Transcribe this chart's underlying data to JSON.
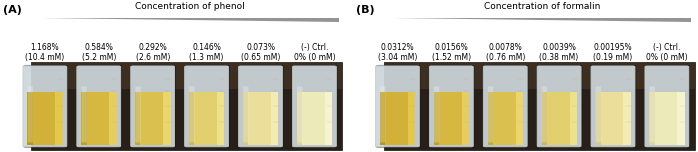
{
  "panel_A": {
    "label": "(A)",
    "concentration_label": "Concentration of phenol",
    "tube_labels": [
      "1.168%\n(10.4 mM)",
      "0.584%\n(5.2 mM)",
      "0.292%\n(2.6 mM)",
      "0.146%\n(1.3 mM)",
      "0.073%\n(0.65 mM)",
      "(-) Ctrl.\n0% (0 mM)"
    ],
    "liquid_colors_dark": [
      "#b8960a",
      "#bda020",
      "#c4aa30",
      "#ccb850",
      "#d8cc80",
      "#ddd8a0"
    ],
    "liquid_colors_mid": [
      "#d4b030",
      "#d8b83a",
      "#dcc048",
      "#e4d068",
      "#eee098",
      "#f0ecb8"
    ],
    "liquid_colors_light": [
      "#e8c840",
      "#eccf50",
      "#f0d860",
      "#f4e480",
      "#f8f0b0",
      "#fdfad0"
    ]
  },
  "panel_B": {
    "label": "(B)",
    "concentration_label": "Concentration of formalin",
    "tube_labels": [
      "0.0312%\n(3.04 mM)",
      "0.0156%\n(1.52 mM)",
      "0.0078%\n(0.76 mM)",
      "0.0039%\n(0.38 mM)",
      "0.00195%\n(0.19 mM)",
      "(-) Ctrl.\n0% (0 mM)"
    ],
    "liquid_colors_dark": [
      "#b8960a",
      "#bda020",
      "#c4aa30",
      "#ccb850",
      "#d8cc80",
      "#ddd8a0"
    ],
    "liquid_colors_mid": [
      "#d4b030",
      "#d8b83a",
      "#dcc048",
      "#e4d068",
      "#eee098",
      "#f0ecb8"
    ],
    "liquid_colors_light": [
      "#e8c840",
      "#eccf50",
      "#f0d860",
      "#f4e480",
      "#f8f0b0",
      "#fdfad0"
    ]
  },
  "arrow_color_dark": "#555555",
  "arrow_color_light": "#aaaaaa",
  "text_color": "#000000",
  "label_fontsize": 5.5,
  "title_fontsize": 6.5,
  "panel_label_fontsize": 8,
  "bg_color": "#3a3028",
  "bg_color2": "#c8b89a",
  "tube_glass_color": "#dde8ee",
  "tube_highlight": "#f5faff"
}
